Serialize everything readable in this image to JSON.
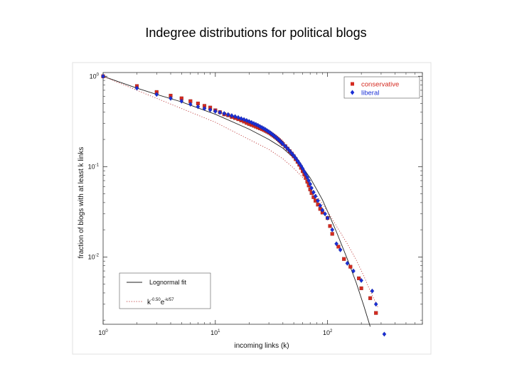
{
  "slide": {
    "title": "Indegree distributions for political blogs"
  },
  "chart_data": {
    "type": "scatter",
    "x_scale": "log",
    "y_scale": "log",
    "xlim": [
      1,
      700
    ],
    "ylim": [
      0.0018,
      1.1
    ],
    "xlabel": "incoming links (k)",
    "ylabel": "fraction of blogs with at least k links",
    "x_ticks": [
      {
        "value": 1,
        "base": "10",
        "exp": "0"
      },
      {
        "value": 10,
        "base": "10",
        "exp": "1"
      },
      {
        "value": 100,
        "base": "10",
        "exp": "2"
      }
    ],
    "y_ticks": [
      {
        "value": 1,
        "base": "10",
        "exp": "0"
      },
      {
        "value": 0.1,
        "base": "10",
        "exp": "-1"
      },
      {
        "value": 0.01,
        "base": "10",
        "exp": "-2"
      }
    ],
    "legend_top_right": [
      {
        "label": "conservative",
        "color": "#d42a20",
        "marker": "square"
      },
      {
        "label": "liberal",
        "color": "#1a2fd6",
        "marker": "diamond"
      }
    ],
    "legend_bottom_left": {
      "lognormal_label": "Lognormal fit",
      "powerlaw_k": "k",
      "powerlaw_k_exp": "-0.50",
      "powerlaw_e": "e",
      "powerlaw_e_exp": "-k/57"
    },
    "series": [
      {
        "name": "conservative",
        "color": "#d42a20",
        "marker": "square",
        "points": [
          [
            1,
            1.0
          ],
          [
            2,
            0.78
          ],
          [
            3,
            0.67
          ],
          [
            4,
            0.61
          ],
          [
            5,
            0.57
          ],
          [
            6,
            0.53
          ],
          [
            7,
            0.5
          ],
          [
            8,
            0.47
          ],
          [
            9,
            0.45
          ],
          [
            10,
            0.42
          ],
          [
            11,
            0.4
          ],
          [
            12,
            0.38
          ],
          [
            13,
            0.37
          ],
          [
            14,
            0.355
          ],
          [
            15,
            0.345
          ],
          [
            16,
            0.335
          ],
          [
            17,
            0.325
          ],
          [
            18,
            0.315
          ],
          [
            19,
            0.305
          ],
          [
            20,
            0.297
          ],
          [
            21,
            0.29
          ],
          [
            22,
            0.283
          ],
          [
            23,
            0.277
          ],
          [
            24,
            0.271
          ],
          [
            25,
            0.265
          ],
          [
            26,
            0.26
          ],
          [
            27,
            0.255
          ],
          [
            28,
            0.249
          ],
          [
            29,
            0.244
          ],
          [
            30,
            0.238
          ],
          [
            31,
            0.232
          ],
          [
            32,
            0.226
          ],
          [
            33,
            0.22
          ],
          [
            34,
            0.214
          ],
          [
            35,
            0.208
          ],
          [
            36,
            0.202
          ],
          [
            37,
            0.196
          ],
          [
            38,
            0.19
          ],
          [
            39,
            0.184
          ],
          [
            40,
            0.178
          ],
          [
            42,
            0.168
          ],
          [
            44,
            0.158
          ],
          [
            46,
            0.148
          ],
          [
            48,
            0.139
          ],
          [
            50,
            0.13
          ],
          [
            52,
            0.121
          ],
          [
            54,
            0.113
          ],
          [
            56,
            0.105
          ],
          [
            58,
            0.097
          ],
          [
            60,
            0.089
          ],
          [
            62,
            0.082
          ],
          [
            64,
            0.075
          ],
          [
            66,
            0.068
          ],
          [
            68,
            0.062
          ],
          [
            70,
            0.056
          ],
          [
            72,
            0.051
          ],
          [
            75,
            0.046
          ],
          [
            78,
            0.042
          ],
          [
            82,
            0.038
          ],
          [
            86,
            0.034
          ],
          [
            90,
            0.031
          ],
          [
            100,
            0.027
          ],
          [
            105,
            0.022
          ],
          [
            110,
            0.018
          ],
          [
            125,
            0.013
          ],
          [
            140,
            0.0095
          ],
          [
            160,
            0.0078
          ],
          [
            190,
            0.0058
          ],
          [
            200,
            0.0045
          ],
          [
            240,
            0.0035
          ],
          [
            270,
            0.0024
          ]
        ]
      },
      {
        "name": "liberal",
        "color": "#1a2fd6",
        "marker": "diamond",
        "points": [
          [
            1,
            1.0
          ],
          [
            2,
            0.74
          ],
          [
            3,
            0.63
          ],
          [
            4,
            0.57
          ],
          [
            5,
            0.53
          ],
          [
            6,
            0.49
          ],
          [
            7,
            0.46
          ],
          [
            8,
            0.44
          ],
          [
            9,
            0.425
          ],
          [
            10,
            0.41
          ],
          [
            11,
            0.398
          ],
          [
            12,
            0.387
          ],
          [
            13,
            0.377
          ],
          [
            14,
            0.367
          ],
          [
            15,
            0.358
          ],
          [
            16,
            0.349
          ],
          [
            17,
            0.34
          ],
          [
            18,
            0.332
          ],
          [
            19,
            0.324
          ],
          [
            20,
            0.316
          ],
          [
            21,
            0.308
          ],
          [
            22,
            0.3
          ],
          [
            23,
            0.293
          ],
          [
            24,
            0.286
          ],
          [
            25,
            0.278
          ],
          [
            26,
            0.271
          ],
          [
            27,
            0.264
          ],
          [
            28,
            0.257
          ],
          [
            29,
            0.25
          ],
          [
            30,
            0.243
          ],
          [
            31,
            0.236
          ],
          [
            32,
            0.229
          ],
          [
            33,
            0.222
          ],
          [
            34,
            0.215
          ],
          [
            35,
            0.208
          ],
          [
            36,
            0.202
          ],
          [
            37,
            0.196
          ],
          [
            38,
            0.19
          ],
          [
            39,
            0.184
          ],
          [
            40,
            0.178
          ],
          [
            42,
            0.168
          ],
          [
            44,
            0.158
          ],
          [
            46,
            0.149
          ],
          [
            48,
            0.14
          ],
          [
            50,
            0.132
          ],
          [
            52,
            0.124
          ],
          [
            54,
            0.116
          ],
          [
            56,
            0.109
          ],
          [
            58,
            0.102
          ],
          [
            60,
            0.095
          ],
          [
            62,
            0.088
          ],
          [
            64,
            0.082
          ],
          [
            66,
            0.076
          ],
          [
            68,
            0.07
          ],
          [
            70,
            0.064
          ],
          [
            72,
            0.058
          ],
          [
            75,
            0.052
          ],
          [
            78,
            0.047
          ],
          [
            82,
            0.042
          ],
          [
            86,
            0.037
          ],
          [
            90,
            0.033
          ],
          [
            95,
            0.03
          ],
          [
            100,
            0.027
          ],
          [
            110,
            0.02
          ],
          [
            120,
            0.014
          ],
          [
            130,
            0.012
          ],
          [
            150,
            0.0085
          ],
          [
            170,
            0.007
          ],
          [
            200,
            0.0055
          ],
          [
            250,
            0.0042
          ],
          [
            270,
            0.003
          ],
          [
            320,
            0.0014
          ]
        ]
      }
    ],
    "fits": [
      {
        "name": "Lognormal fit",
        "style": "solid",
        "color": "#222222",
        "points": [
          [
            1,
            1.0
          ],
          [
            2,
            0.74
          ],
          [
            3,
            0.63
          ],
          [
            5,
            0.52
          ],
          [
            10,
            0.38
          ],
          [
            20,
            0.26
          ],
          [
            30,
            0.2
          ],
          [
            40,
            0.16
          ],
          [
            50,
            0.125
          ],
          [
            60,
            0.098
          ],
          [
            70,
            0.075
          ],
          [
            80,
            0.056
          ],
          [
            90,
            0.043
          ],
          [
            100,
            0.032
          ],
          [
            120,
            0.019
          ],
          [
            150,
            0.0095
          ],
          [
            180,
            0.0052
          ],
          [
            210,
            0.0029
          ],
          [
            240,
            0.0017
          ]
        ]
      },
      {
        "name": "k^-0.50 e^-k/57",
        "style": "dotted",
        "color": "#c04040",
        "points": [
          [
            1,
            1.0
          ],
          [
            2,
            0.7
          ],
          [
            3,
            0.57
          ],
          [
            5,
            0.44
          ],
          [
            10,
            0.31
          ],
          [
            20,
            0.2
          ],
          [
            30,
            0.155
          ],
          [
            40,
            0.122
          ],
          [
            50,
            0.096
          ],
          [
            60,
            0.076
          ],
          [
            70,
            0.06
          ],
          [
            80,
            0.048
          ],
          [
            100,
            0.032
          ],
          [
            120,
            0.022
          ],
          [
            150,
            0.014
          ],
          [
            180,
            0.0093
          ],
          [
            210,
            0.0062
          ],
          [
            240,
            0.0042
          ],
          [
            280,
            0.0028
          ]
        ]
      }
    ]
  }
}
